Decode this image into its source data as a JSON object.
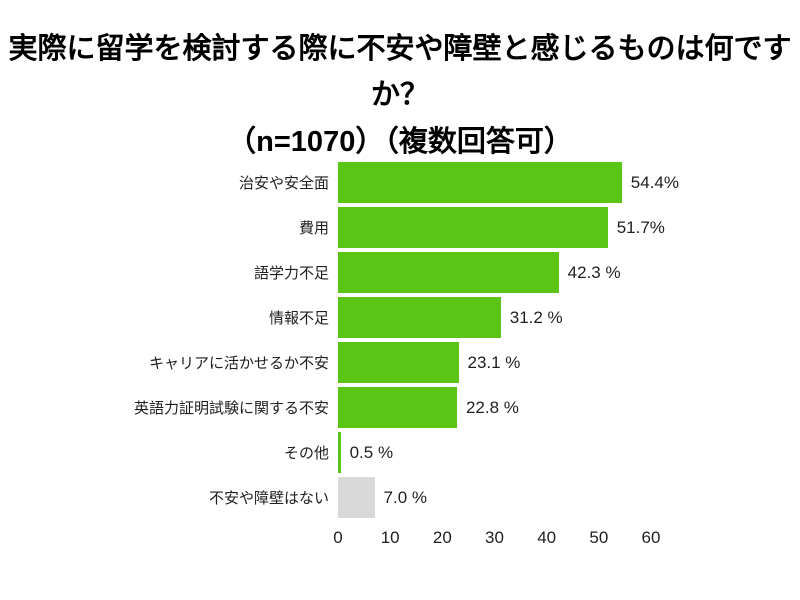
{
  "chart_data": {
    "type": "bar",
    "orientation": "horizontal",
    "title": "実際に留学を検討する際に不安や障壁と感じるものは何ですか？",
    "subtitle": "（n=1070）（複数回答可）",
    "categories": [
      "治安や安全面",
      "費用",
      "語学力不足",
      "情報不足",
      "キャリアに活かせるか不安",
      "英語力証明試験に関する不安",
      "その他",
      "不安や障壁はない"
    ],
    "values": [
      54.4,
      51.7,
      42.3,
      31.2,
      23.1,
      22.8,
      0.5,
      7.0
    ],
    "value_labels": [
      "54.4%",
      "51.7%",
      "42.3 %",
      "31.2 %",
      "23.1 %",
      "22.8 %",
      "0.5 %",
      "7.0 %"
    ],
    "bar_colors": [
      "#5AC514",
      "#5AC514",
      "#5AC514",
      "#5AC514",
      "#5AC514",
      "#5AC514",
      "#5AC514",
      "#D9D9D9"
    ],
    "x_ticks": [
      "0",
      "10",
      "20",
      "30",
      "40",
      "50",
      "60"
    ],
    "x_tick_values": [
      0,
      10,
      20,
      30,
      40,
      50,
      60
    ],
    "xlim": [
      0,
      60
    ],
    "grid": false,
    "legend": false,
    "colors": {
      "bar_green": "#5AC514",
      "bar_gray": "#D9D9D9",
      "text": "#1f1f1f",
      "title_text": "#000000",
      "background": "#ffffff"
    }
  }
}
